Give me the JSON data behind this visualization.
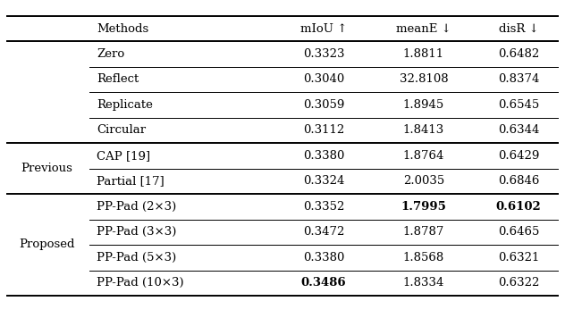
{
  "col_headers": [
    "Methods",
    "mIoU ↑",
    "meanE ↓",
    "disR ↓"
  ],
  "group_labels": [
    {
      "label": "",
      "rows": [
        0,
        1,
        2,
        3
      ]
    },
    {
      "label": "Previous",
      "rows": [
        4,
        5
      ]
    },
    {
      "label": "Proposed",
      "rows": [
        6,
        7,
        8,
        9
      ]
    }
  ],
  "rows": [
    {
      "method": "Zero",
      "mIoU": "0.3323",
      "meanE": "1.8811",
      "disR": "0.6482",
      "bold_mIoU": false,
      "bold_meanE": false,
      "bold_disR": false
    },
    {
      "method": "Reflect",
      "mIoU": "0.3040",
      "meanE": "32.8108",
      "disR": "0.8374",
      "bold_mIoU": false,
      "bold_meanE": false,
      "bold_disR": false
    },
    {
      "method": "Replicate",
      "mIoU": "0.3059",
      "meanE": "1.8945",
      "disR": "0.6545",
      "bold_mIoU": false,
      "bold_meanE": false,
      "bold_disR": false
    },
    {
      "method": "Circular",
      "mIoU": "0.3112",
      "meanE": "1.8413",
      "disR": "0.6344",
      "bold_mIoU": false,
      "bold_meanE": false,
      "bold_disR": false
    },
    {
      "method": "CAP [19]",
      "mIoU": "0.3380",
      "meanE": "1.8764",
      "disR": "0.6429",
      "bold_mIoU": false,
      "bold_meanE": false,
      "bold_disR": false
    },
    {
      "method": "Partial [17]",
      "mIoU": "0.3324",
      "meanE": "2.0035",
      "disR": "0.6846",
      "bold_mIoU": false,
      "bold_meanE": false,
      "bold_disR": false
    },
    {
      "method": "PP-Pad (2×3)",
      "mIoU": "0.3352",
      "meanE": "1.7995",
      "disR": "0.6102",
      "bold_mIoU": false,
      "bold_meanE": true,
      "bold_disR": true
    },
    {
      "method": "PP-Pad (3×3)",
      "mIoU": "0.3472",
      "meanE": "1.8787",
      "disR": "0.6465",
      "bold_mIoU": false,
      "bold_meanE": false,
      "bold_disR": false
    },
    {
      "method": "PP-Pad (5×3)",
      "mIoU": "0.3380",
      "meanE": "1.8568",
      "disR": "0.6321",
      "bold_mIoU": false,
      "bold_meanE": false,
      "bold_disR": false
    },
    {
      "method": "PP-Pad (10×3)",
      "mIoU": "0.3486",
      "meanE": "1.8334",
      "disR": "0.6322",
      "bold_mIoU": true,
      "bold_meanE": false,
      "bold_disR": false
    }
  ],
  "thick_section_dividers_after_row": [
    3,
    5
  ],
  "font_size": 9.5,
  "background_color": "#ffffff",
  "text_color": "#000000",
  "line_color": "#000000"
}
